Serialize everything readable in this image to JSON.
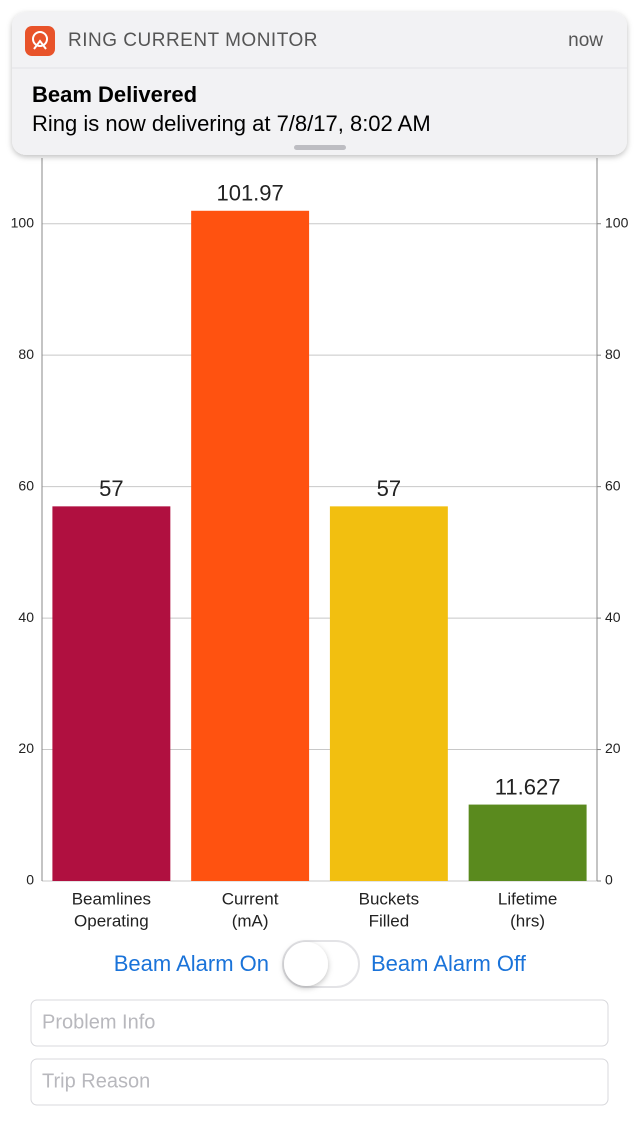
{
  "notification": {
    "app": "RING CURRENT MONITOR",
    "time": "now",
    "title": "Beam Delivered",
    "body": "Ring is now delivering at 7/8/17, 8:02 AM"
  },
  "chart_data": {
    "type": "bar",
    "categories": [
      [
        "Beamlines",
        "Operating"
      ],
      [
        "Current",
        "(mA)"
      ],
      [
        "Buckets",
        "Filled"
      ],
      [
        "Lifetime",
        "(hrs)"
      ]
    ],
    "values": [
      57,
      101.97,
      57,
      11.627
    ],
    "colors": [
      "#b01040",
      "#ff5210",
      "#f2bf10",
      "#5a8a1e"
    ],
    "ylim": [
      0,
      110
    ],
    "yticks": [
      0,
      20,
      40,
      60,
      80,
      100
    ],
    "y2lim": [
      0,
      110
    ],
    "y2ticks": [
      0,
      20,
      40,
      60,
      80,
      100
    ],
    "grid": true
  },
  "controls": {
    "alarm_on": "Beam Alarm On",
    "alarm_off": "Beam Alarm Off",
    "fields": [
      "Problem Info",
      "Trip Reason"
    ]
  }
}
